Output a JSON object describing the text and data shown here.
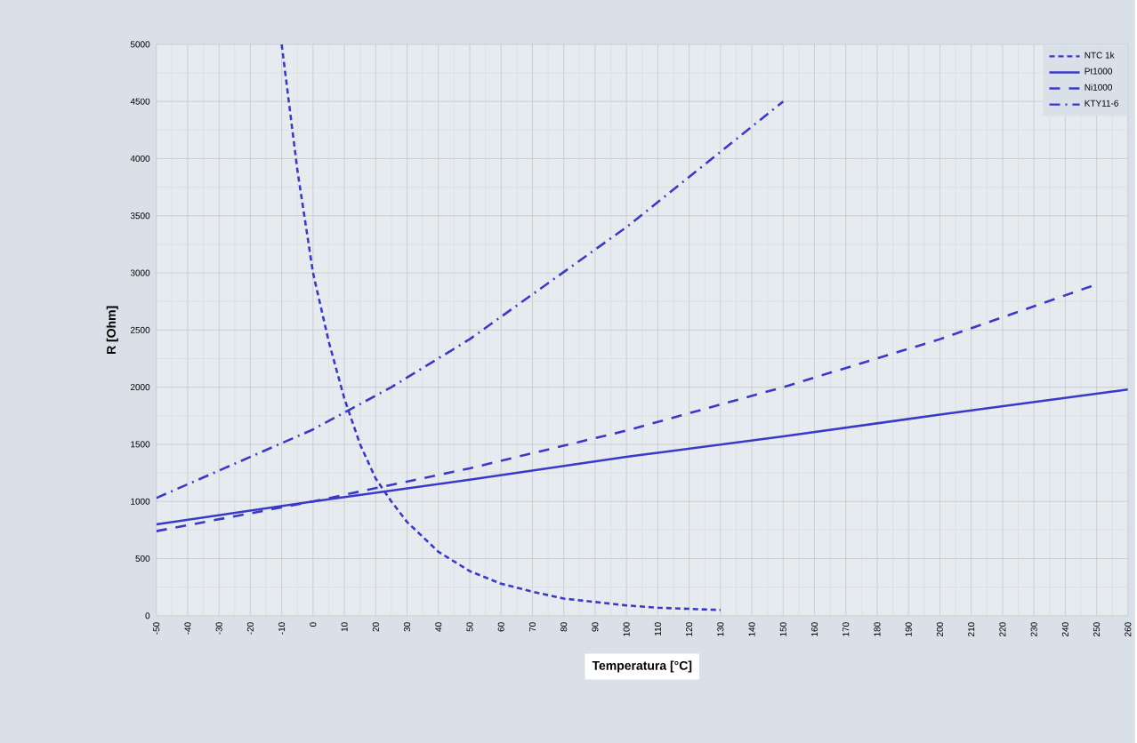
{
  "chart_data": {
    "type": "line",
    "xlabel": "Temperatura [°C]",
    "ylabel": "R [Ohm]",
    "xlim": [
      -50,
      260
    ],
    "ylim": [
      0,
      5000
    ],
    "xticks": [
      -50,
      -40,
      -30,
      -20,
      -10,
      0,
      10,
      20,
      30,
      40,
      50,
      60,
      70,
      80,
      90,
      100,
      110,
      120,
      130,
      140,
      150,
      160,
      170,
      180,
      190,
      200,
      210,
      220,
      230,
      240,
      250,
      260
    ],
    "yticks": [
      0,
      500,
      1000,
      1500,
      2000,
      2500,
      3000,
      3500,
      4000,
      4500,
      5000
    ],
    "grid": true,
    "legend": "top right",
    "marker": "none",
    "series": [
      {
        "name": "NTC 1k",
        "color": "#3a3ac8",
        "line_style": "densely dashed",
        "x": [
          -10,
          -5,
          0,
          5,
          10,
          15,
          20,
          25,
          30,
          40,
          50,
          60,
          70,
          80,
          90,
          100,
          110,
          120,
          130
        ],
        "values": [
          5000,
          3900,
          3000,
          2400,
          1900,
          1500,
          1200,
          1000,
          820,
          560,
          390,
          280,
          210,
          150,
          120,
          90,
          70,
          60,
          50
        ]
      },
      {
        "name": "Pt1000",
        "color": "#3a3ac8",
        "line_style": "solid",
        "x": [
          -50,
          0,
          50,
          100,
          150,
          200,
          260
        ],
        "values": [
          800,
          1000,
          1190,
          1390,
          1570,
          1760,
          1980
        ]
      },
      {
        "name": "Ni1000",
        "color": "#3a3ac8",
        "line_style": "dashed",
        "x": [
          -50,
          0,
          50,
          100,
          150,
          200,
          250
        ],
        "values": [
          740,
          1000,
          1290,
          1620,
          2000,
          2420,
          2900
        ]
      },
      {
        "name": "KTY11-6",
        "color": "#3a3ac8",
        "line_style": "dashdot",
        "x": [
          -50,
          0,
          25,
          50,
          100,
          150
        ],
        "values": [
          1030,
          1630,
          2000,
          2420,
          3400,
          4500
        ]
      }
    ]
  }
}
